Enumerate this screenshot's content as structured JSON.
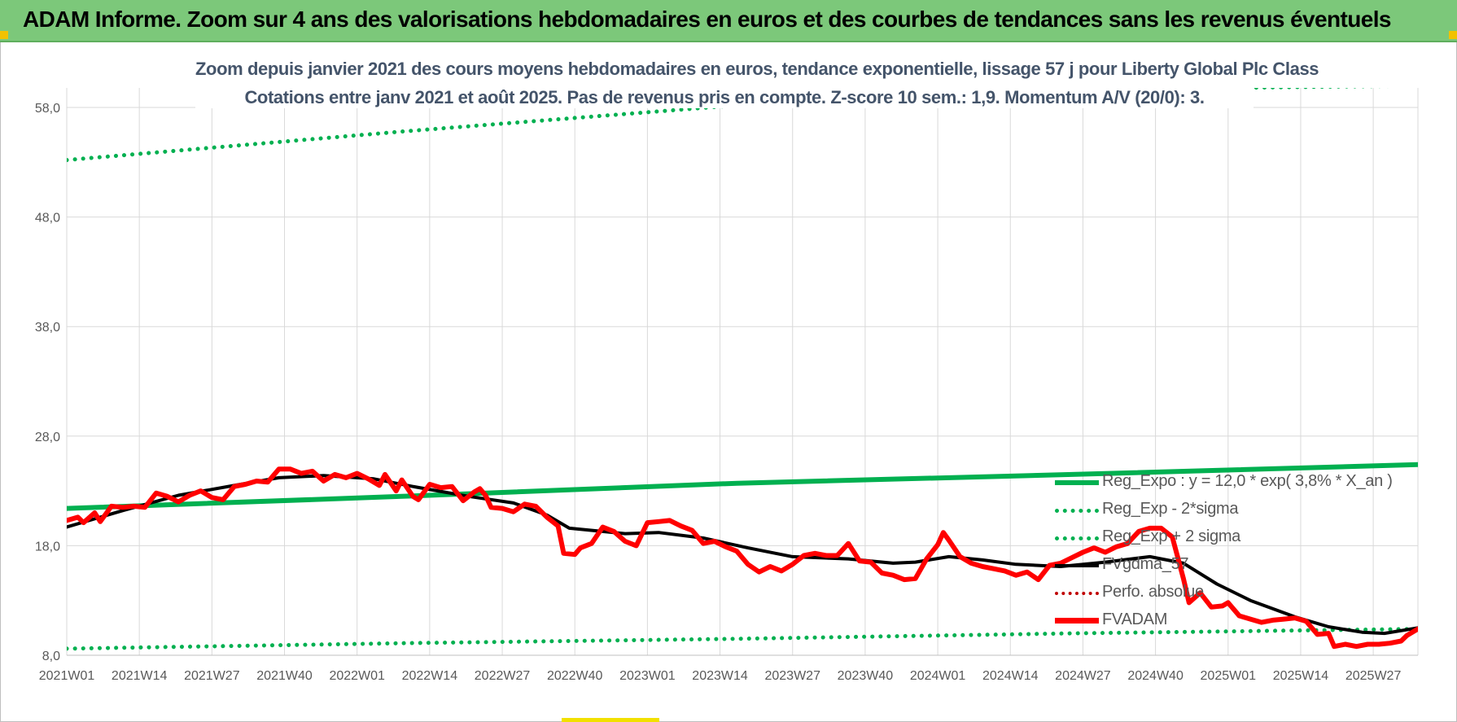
{
  "banner": {
    "title": "ADAM Informe. Zoom sur 4 ans des valorisations hebdomadaires en euros et des courbes de tendances sans les revenus éventuels"
  },
  "colors": {
    "banner_bg": "#7cc87a",
    "title_text": "#44546a",
    "reg_expo": "#00b050",
    "fvgdma": "#000000",
    "perfo": "#c00000",
    "fvadam": "#ff0000"
  },
  "chart_data": {
    "type": "line",
    "title_line1": "Zoom depuis janvier 2021 des cours moyens hebdomadaires en euros, tendance exponentielle, lissage 57 j pour Liberty Global Plc Class",
    "title_line2": "Cotations entre janv 2021 et août 2025. Pas de revenus pris en compte. Z-score 10 sem.: 1,9. Momentum A/V (20/0): 3.",
    "ylim": [
      8,
      60
    ],
    "y_ticks": [
      8,
      18,
      28,
      38,
      48,
      58
    ],
    "y_tick_labels": [
      "8,0",
      "18,0",
      "28,0",
      "38,0",
      "48,0",
      "58,0"
    ],
    "week_count": 243,
    "x_tick_labels": [
      "2021W01",
      "2021W14",
      "2021W27",
      "2021W40",
      "2022W01",
      "2022W14",
      "2022W27",
      "2022W40",
      "2023W01",
      "2023W14",
      "2023W27",
      "2023W40",
      "2024W01",
      "2024W14",
      "2024W27",
      "2024W40",
      "2025W01",
      "2025W14",
      "2025W27"
    ],
    "x_tick_weeks": [
      0,
      13,
      26,
      39,
      52,
      65,
      78,
      91,
      104,
      117,
      130,
      143,
      156,
      169,
      182,
      195,
      208,
      221,
      234
    ],
    "grid": true,
    "legend_position": "bottom-right",
    "series": [
      {
        "name": "Reg_Expo : y = 12,0 * exp( 3,8% *  X_an )",
        "style": "solid",
        "points": [
          [
            0,
            21.4
          ],
          [
            60,
            22.5
          ],
          [
            120,
            23.7
          ],
          [
            180,
            24.5
          ],
          [
            242,
            25.4
          ]
        ]
      },
      {
        "name": "Reg_Exp - 2*sigma",
        "style": "dotted",
        "points": [
          [
            0,
            8.6
          ],
          [
            60,
            9.1
          ],
          [
            120,
            9.5
          ],
          [
            180,
            10.0
          ],
          [
            242,
            10.4
          ]
        ]
      },
      {
        "name": "Reg_Exp + 2 sigma",
        "style": "dotted",
        "points": [
          [
            0,
            53.2
          ],
          [
            60,
            55.8
          ],
          [
            120,
            58.2
          ],
          [
            180,
            59.6
          ],
          [
            242,
            60.0
          ]
        ]
      },
      {
        "name": "FVgdma_57",
        "style": "solid",
        "points": [
          [
            0,
            19.7
          ],
          [
            10,
            21.2
          ],
          [
            20,
            22.6
          ],
          [
            30,
            23.5
          ],
          [
            38,
            24.2
          ],
          [
            46,
            24.4
          ],
          [
            55,
            24.1
          ],
          [
            62,
            23.4
          ],
          [
            72,
            22.5
          ],
          [
            80,
            21.9
          ],
          [
            86,
            20.8
          ],
          [
            90,
            19.6
          ],
          [
            100,
            19.1
          ],
          [
            106,
            19.2
          ],
          [
            114,
            18.7
          ],
          [
            122,
            17.8
          ],
          [
            130,
            17.0
          ],
          [
            140,
            16.8
          ],
          [
            148,
            16.4
          ],
          [
            152,
            16.5
          ],
          [
            158,
            17.0
          ],
          [
            164,
            16.7
          ],
          [
            170,
            16.3
          ],
          [
            178,
            16.1
          ],
          [
            186,
            16.5
          ],
          [
            194,
            17.0
          ],
          [
            200,
            16.4
          ],
          [
            206,
            14.5
          ],
          [
            212,
            13.0
          ],
          [
            220,
            11.5
          ],
          [
            226,
            10.6
          ],
          [
            232,
            10.1
          ],
          [
            236,
            10.0
          ],
          [
            242,
            10.5
          ]
        ]
      },
      {
        "name": "Perfo. absolue",
        "style": "dotted",
        "points": []
      },
      {
        "name": "FVADAM",
        "style": "solid",
        "points": [
          [
            0,
            20.3
          ],
          [
            2,
            20.6
          ],
          [
            3,
            20.1
          ],
          [
            5,
            21.0
          ],
          [
            6,
            20.2
          ],
          [
            8,
            21.6
          ],
          [
            10,
            21.5
          ],
          [
            12,
            21.6
          ],
          [
            14,
            21.5
          ],
          [
            16,
            22.8
          ],
          [
            18,
            22.5
          ],
          [
            20,
            22.0
          ],
          [
            22,
            22.6
          ],
          [
            24,
            23.0
          ],
          [
            26,
            22.4
          ],
          [
            28,
            22.2
          ],
          [
            30,
            23.4
          ],
          [
            32,
            23.6
          ],
          [
            34,
            23.9
          ],
          [
            36,
            23.8
          ],
          [
            38,
            25.0
          ],
          [
            40,
            25.0
          ],
          [
            42,
            24.6
          ],
          [
            44,
            24.8
          ],
          [
            46,
            23.9
          ],
          [
            48,
            24.5
          ],
          [
            50,
            24.2
          ],
          [
            52,
            24.6
          ],
          [
            54,
            24.1
          ],
          [
            56,
            23.5
          ],
          [
            57,
            24.5
          ],
          [
            59,
            23.0
          ],
          [
            60,
            24.0
          ],
          [
            62,
            22.5
          ],
          [
            63,
            22.2
          ],
          [
            65,
            23.6
          ],
          [
            67,
            23.3
          ],
          [
            69,
            23.4
          ],
          [
            71,
            22.1
          ],
          [
            73,
            22.9
          ],
          [
            74,
            23.2
          ],
          [
            75,
            22.6
          ],
          [
            76,
            21.5
          ],
          [
            78,
            21.4
          ],
          [
            80,
            21.1
          ],
          [
            82,
            21.8
          ],
          [
            84,
            21.6
          ],
          [
            86,
            20.6
          ],
          [
            88,
            19.8
          ],
          [
            89,
            17.3
          ],
          [
            91,
            17.2
          ],
          [
            92,
            17.8
          ],
          [
            94,
            18.2
          ],
          [
            96,
            19.7
          ],
          [
            98,
            19.3
          ],
          [
            100,
            18.4
          ],
          [
            102,
            18.0
          ],
          [
            104,
            20.1
          ],
          [
            106,
            20.2
          ],
          [
            108,
            20.3
          ],
          [
            110,
            19.8
          ],
          [
            112,
            19.4
          ],
          [
            114,
            18.2
          ],
          [
            116,
            18.4
          ],
          [
            118,
            17.9
          ],
          [
            120,
            17.5
          ],
          [
            122,
            16.3
          ],
          [
            124,
            15.6
          ],
          [
            126,
            16.1
          ],
          [
            128,
            15.7
          ],
          [
            130,
            16.3
          ],
          [
            132,
            17.1
          ],
          [
            134,
            17.3
          ],
          [
            136,
            17.1
          ],
          [
            138,
            17.1
          ],
          [
            140,
            18.2
          ],
          [
            142,
            16.6
          ],
          [
            144,
            16.5
          ],
          [
            146,
            15.5
          ],
          [
            148,
            15.3
          ],
          [
            150,
            14.9
          ],
          [
            152,
            15.0
          ],
          [
            154,
            16.8
          ],
          [
            156,
            18.1
          ],
          [
            157,
            19.2
          ],
          [
            158,
            18.5
          ],
          [
            160,
            17.0
          ],
          [
            162,
            16.4
          ],
          [
            164,
            16.1
          ],
          [
            166,
            15.9
          ],
          [
            168,
            15.7
          ],
          [
            170,
            15.3
          ],
          [
            172,
            15.6
          ],
          [
            174,
            14.9
          ],
          [
            176,
            16.2
          ],
          [
            178,
            16.4
          ],
          [
            180,
            16.9
          ],
          [
            182,
            17.4
          ],
          [
            184,
            17.8
          ],
          [
            186,
            17.4
          ],
          [
            188,
            17.9
          ],
          [
            190,
            18.2
          ],
          [
            192,
            19.3
          ],
          [
            194,
            19.6
          ],
          [
            196,
            19.6
          ],
          [
            198,
            18.8
          ],
          [
            200,
            15.0
          ],
          [
            201,
            12.8
          ],
          [
            203,
            13.7
          ],
          [
            205,
            12.4
          ],
          [
            207,
            12.5
          ],
          [
            208,
            12.8
          ],
          [
            210,
            11.6
          ],
          [
            212,
            11.3
          ],
          [
            214,
            11.0
          ],
          [
            216,
            11.2
          ],
          [
            218,
            11.3
          ],
          [
            220,
            11.4
          ],
          [
            222,
            11.1
          ],
          [
            224,
            9.9
          ],
          [
            226,
            10.0
          ],
          [
            227,
            8.8
          ],
          [
            229,
            9.0
          ],
          [
            231,
            8.8
          ],
          [
            233,
            9.0
          ],
          [
            235,
            9.0
          ],
          [
            237,
            9.1
          ],
          [
            239,
            9.3
          ],
          [
            240,
            9.8
          ],
          [
            242,
            10.4
          ]
        ]
      }
    ]
  }
}
